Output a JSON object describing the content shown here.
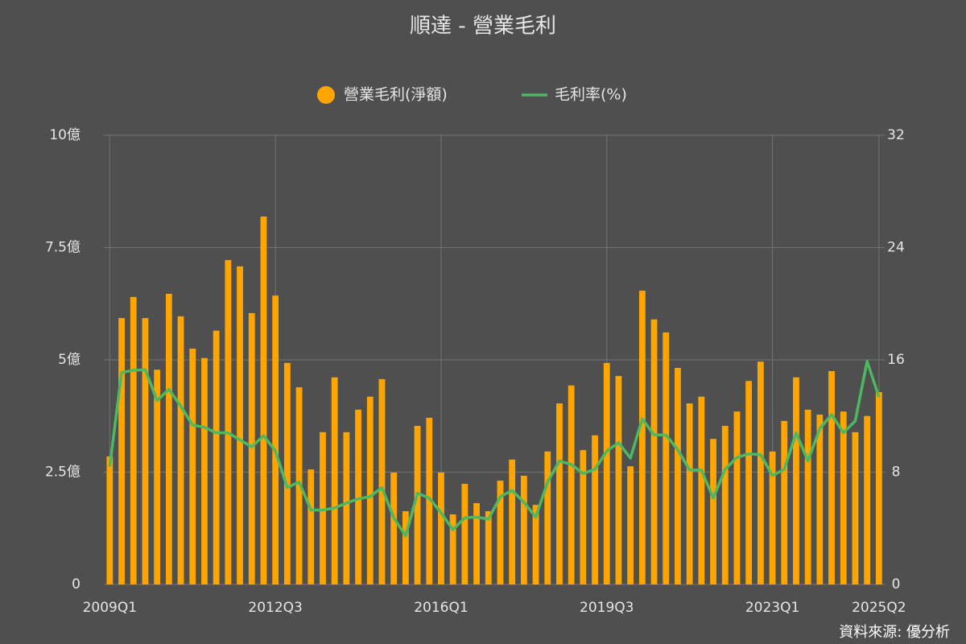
{
  "chart_data": {
    "type": "bar",
    "title": "順達 - 營業毛利",
    "source": "資料來源: 優分析",
    "categories": [
      "2009Q1",
      null,
      null,
      null,
      null,
      null,
      null,
      null,
      null,
      null,
      null,
      null,
      null,
      null,
      "2012Q3",
      null,
      null,
      null,
      null,
      null,
      null,
      null,
      null,
      null,
      null,
      null,
      null,
      null,
      "2016Q1",
      null,
      null,
      null,
      null,
      null,
      null,
      null,
      null,
      null,
      null,
      null,
      null,
      null,
      "2019Q3",
      null,
      null,
      null,
      null,
      null,
      null,
      null,
      null,
      null,
      null,
      null,
      null,
      null,
      "2023Q1",
      null,
      null,
      null,
      null,
      null,
      null,
      null,
      null,
      "2025Q2"
    ],
    "series": [
      {
        "name": "營業毛利(淨額)",
        "type": "bar",
        "color": "#ffa500",
        "values": [
          2.85,
          5.93,
          6.4,
          5.93,
          4.78,
          6.47,
          5.97,
          5.25,
          5.04,
          5.65,
          7.22,
          7.08,
          6.04,
          8.19,
          6.43,
          4.93,
          4.39,
          2.56,
          3.39,
          4.61,
          3.39,
          3.89,
          4.18,
          4.57,
          2.49,
          1.63,
          3.53,
          3.71,
          2.49,
          1.56,
          2.24,
          1.81,
          1.63,
          2.31,
          2.78,
          2.42,
          1.77,
          2.96,
          4.03,
          4.43,
          2.99,
          3.32,
          4.93,
          4.64,
          2.63,
          6.54,
          5.9,
          5.61,
          4.82,
          4.03,
          4.18,
          3.24,
          3.53,
          3.85,
          4.53,
          4.96,
          2.96,
          3.64,
          4.61,
          3.89,
          3.78,
          4.75,
          3.85,
          3.39,
          3.75,
          4.28
        ]
      },
      {
        "name": "毛利率(%)",
        "type": "line",
        "axis": "y2",
        "color": "#4cb860",
        "values": [
          8.4,
          15.1,
          15.25,
          15.3,
          13.1,
          13.9,
          12.7,
          11.35,
          11.2,
          10.8,
          10.8,
          10.3,
          9.8,
          10.6,
          9.5,
          6.9,
          7.3,
          5.3,
          5.3,
          5.45,
          5.8,
          6.1,
          6.25,
          6.9,
          4.75,
          3.45,
          6.5,
          6.15,
          5.1,
          3.9,
          4.75,
          4.8,
          4.65,
          6.25,
          6.7,
          5.85,
          4.8,
          7.3,
          8.8,
          8.55,
          7.9,
          8.2,
          9.5,
          10.1,
          9.0,
          11.8,
          10.65,
          10.65,
          9.6,
          8.15,
          8.15,
          6.15,
          8.2,
          9.05,
          9.3,
          9.25,
          7.75,
          8.2,
          10.8,
          8.8,
          11.1,
          12.1,
          10.8,
          11.65,
          15.9,
          13.35
        ]
      }
    ],
    "ylim": [
      0,
      10
    ],
    "yticks": [
      0,
      {
        "value": 2.5,
        "label": "2.5億"
      },
      {
        "value": 5,
        "label": "5億"
      },
      {
        "value": 7.5,
        "label": "7.5億"
      },
      {
        "value": 10,
        "label": "10億"
      }
    ],
    "y2lim": [
      0,
      32
    ],
    "y2ticks": [
      0,
      8,
      16,
      24,
      32
    ],
    "grid": true
  }
}
